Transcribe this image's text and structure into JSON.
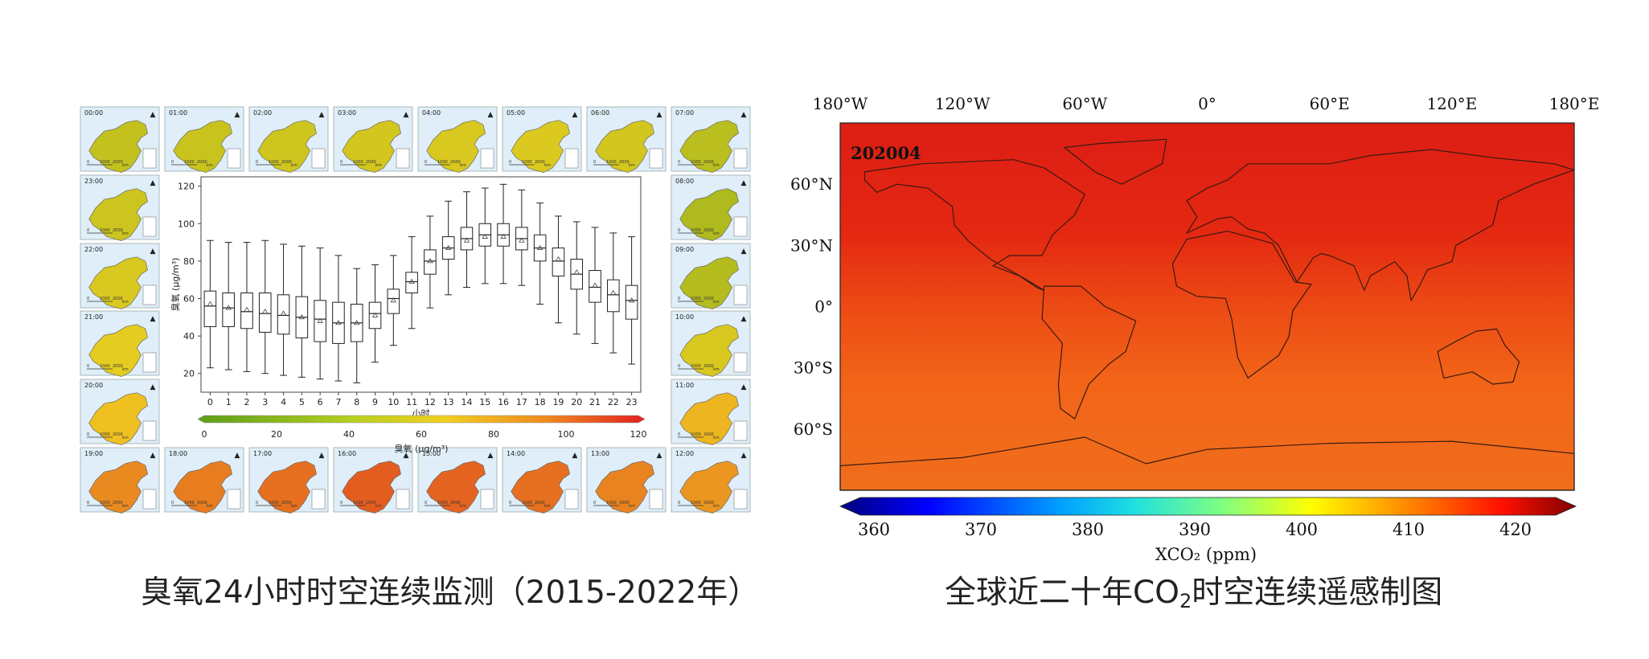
{
  "left_panel": {
    "caption": "臭氧24小时时空连续监测（2015-2022年）",
    "scale_labels": [
      "0",
      "1000",
      "2000"
    ],
    "scale_unit": "km",
    "map_tiles": [
      {
        "hour": "00:00",
        "level": 0.35
      },
      {
        "hour": "01:00",
        "level": 0.37
      },
      {
        "hour": "02:00",
        "level": 0.39
      },
      {
        "hour": "03:00",
        "level": 0.4
      },
      {
        "hour": "04:00",
        "level": 0.42
      },
      {
        "hour": "05:00",
        "level": 0.43
      },
      {
        "hour": "06:00",
        "level": 0.4
      },
      {
        "hour": "07:00",
        "level": 0.32
      },
      {
        "hour": "08:00",
        "level": 0.28
      },
      {
        "hour": "09:00",
        "level": 0.3
      },
      {
        "hour": "10:00",
        "level": 0.42
      },
      {
        "hour": "11:00",
        "level": 0.58
      },
      {
        "hour": "12:00",
        "level": 0.68
      },
      {
        "hour": "13:00",
        "level": 0.74
      },
      {
        "hour": "14:00",
        "level": 0.8
      },
      {
        "hour": "15:00",
        "level": 0.84
      },
      {
        "hour": "16:00",
        "level": 0.86
      },
      {
        "hour": "17:00",
        "level": 0.8
      },
      {
        "hour": "18:00",
        "level": 0.76
      },
      {
        "hour": "19:00",
        "level": 0.72
      },
      {
        "hour": "20:00",
        "level": 0.55
      },
      {
        "hour": "21:00",
        "level": 0.46
      },
      {
        "hour": "22:00",
        "level": 0.42
      },
      {
        "hour": "23:00",
        "level": 0.38
      }
    ],
    "colors": {
      "low": "#5a9e1a",
      "mid": "#f0d020",
      "high": "#e03020"
    }
  },
  "chart_data": [
    {
      "type": "box",
      "title": "",
      "xlabel": "小时",
      "ylabel": "臭氧 (μg/m³)",
      "ylim": [
        10,
        125
      ],
      "yticks": [
        20,
        40,
        60,
        80,
        100,
        120
      ],
      "categories": [
        "0",
        "1",
        "2",
        "3",
        "4",
        "5",
        "6",
        "7",
        "8",
        "9",
        "10",
        "11",
        "12",
        "13",
        "14",
        "15",
        "16",
        "17",
        "18",
        "19",
        "20",
        "21",
        "22",
        "23"
      ],
      "series": [
        {
          "name": "ozone",
          "boxes": [
            {
              "min": 23,
              "q1": 45,
              "median": 56,
              "q3": 64,
              "max": 91,
              "mean": 57
            },
            {
              "min": 22,
              "q1": 45,
              "median": 55,
              "q3": 63,
              "max": 90,
              "mean": 55
            },
            {
              "min": 21,
              "q1": 44,
              "median": 53,
              "q3": 63,
              "max": 90,
              "mean": 54
            },
            {
              "min": 20,
              "q1": 42,
              "median": 52,
              "q3": 63,
              "max": 91,
              "mean": 53
            },
            {
              "min": 19,
              "q1": 41,
              "median": 51,
              "q3": 62,
              "max": 89,
              "mean": 52
            },
            {
              "min": 18,
              "q1": 39,
              "median": 50,
              "q3": 61,
              "max": 88,
              "mean": 50
            },
            {
              "min": 17,
              "q1": 37,
              "median": 49,
              "q3": 59,
              "max": 87,
              "mean": 48
            },
            {
              "min": 16,
              "q1": 36,
              "median": 47,
              "q3": 58,
              "max": 83,
              "mean": 47
            },
            {
              "min": 15,
              "q1": 37,
              "median": 47,
              "q3": 57,
              "max": 76,
              "mean": 47
            },
            {
              "min": 26,
              "q1": 44,
              "median": 52,
              "q3": 58,
              "max": 78,
              "mean": 51
            },
            {
              "min": 35,
              "q1": 52,
              "median": 60,
              "q3": 65,
              "max": 83,
              "mean": 59
            },
            {
              "min": 44,
              "q1": 63,
              "median": 69,
              "q3": 74,
              "max": 93,
              "mean": 69
            },
            {
              "min": 55,
              "q1": 73,
              "median": 80,
              "q3": 86,
              "max": 104,
              "mean": 80
            },
            {
              "min": 62,
              "q1": 81,
              "median": 87,
              "q3": 93,
              "max": 112,
              "mean": 87
            },
            {
              "min": 66,
              "q1": 86,
              "median": 92,
              "q3": 98,
              "max": 117,
              "mean": 91
            },
            {
              "min": 68,
              "q1": 88,
              "median": 94,
              "q3": 100,
              "max": 119,
              "mean": 93
            },
            {
              "min": 68,
              "q1": 88,
              "median": 94,
              "q3": 100,
              "max": 121,
              "mean": 93
            },
            {
              "min": 67,
              "q1": 86,
              "median": 92,
              "q3": 98,
              "max": 118,
              "mean": 91
            },
            {
              "min": 57,
              "q1": 80,
              "median": 87,
              "q3": 94,
              "max": 111,
              "mean": 87
            },
            {
              "min": 47,
              "q1": 72,
              "median": 80,
              "q3": 87,
              "max": 104,
              "mean": 81
            },
            {
              "min": 41,
              "q1": 65,
              "median": 73,
              "q3": 81,
              "max": 101,
              "mean": 74
            },
            {
              "min": 36,
              "q1": 58,
              "median": 66,
              "q3": 75,
              "max": 98,
              "mean": 67
            },
            {
              "min": 31,
              "q1": 53,
              "median": 62,
              "q3": 70,
              "max": 95,
              "mean": 63
            },
            {
              "min": 25,
              "q1": 49,
              "median": 59,
              "q3": 67,
              "max": 93,
              "mean": 59
            }
          ]
        }
      ],
      "colorbar": {
        "label": "臭氧 (μg/m³)",
        "ticks": [
          "0",
          "20",
          "40",
          "60",
          "80",
          "100",
          "120"
        ],
        "range": [
          0,
          120
        ]
      }
    },
    {
      "type": "heatmap",
      "title": "202004",
      "xlabel": "",
      "ylabel": "",
      "x_ticks": [
        "180°W",
        "120°W",
        "60°W",
        "0°",
        "60°E",
        "120°E",
        "180°E"
      ],
      "y_ticks": [
        "60°N",
        "30°N",
        "0°",
        "30°S",
        "60°S"
      ],
      "xlim": [
        -180,
        180
      ],
      "ylim": [
        -90,
        90
      ],
      "colorbar": {
        "label": "XCO₂ (ppm)",
        "ticks": [
          "360",
          "370",
          "380",
          "390",
          "400",
          "410",
          "420"
        ],
        "range": [
          360,
          420
        ]
      }
    }
  ],
  "right_panel": {
    "caption_before": "全球近二十年CO",
    "caption_sub": "2",
    "caption_after": "时空连续遥感制图"
  }
}
